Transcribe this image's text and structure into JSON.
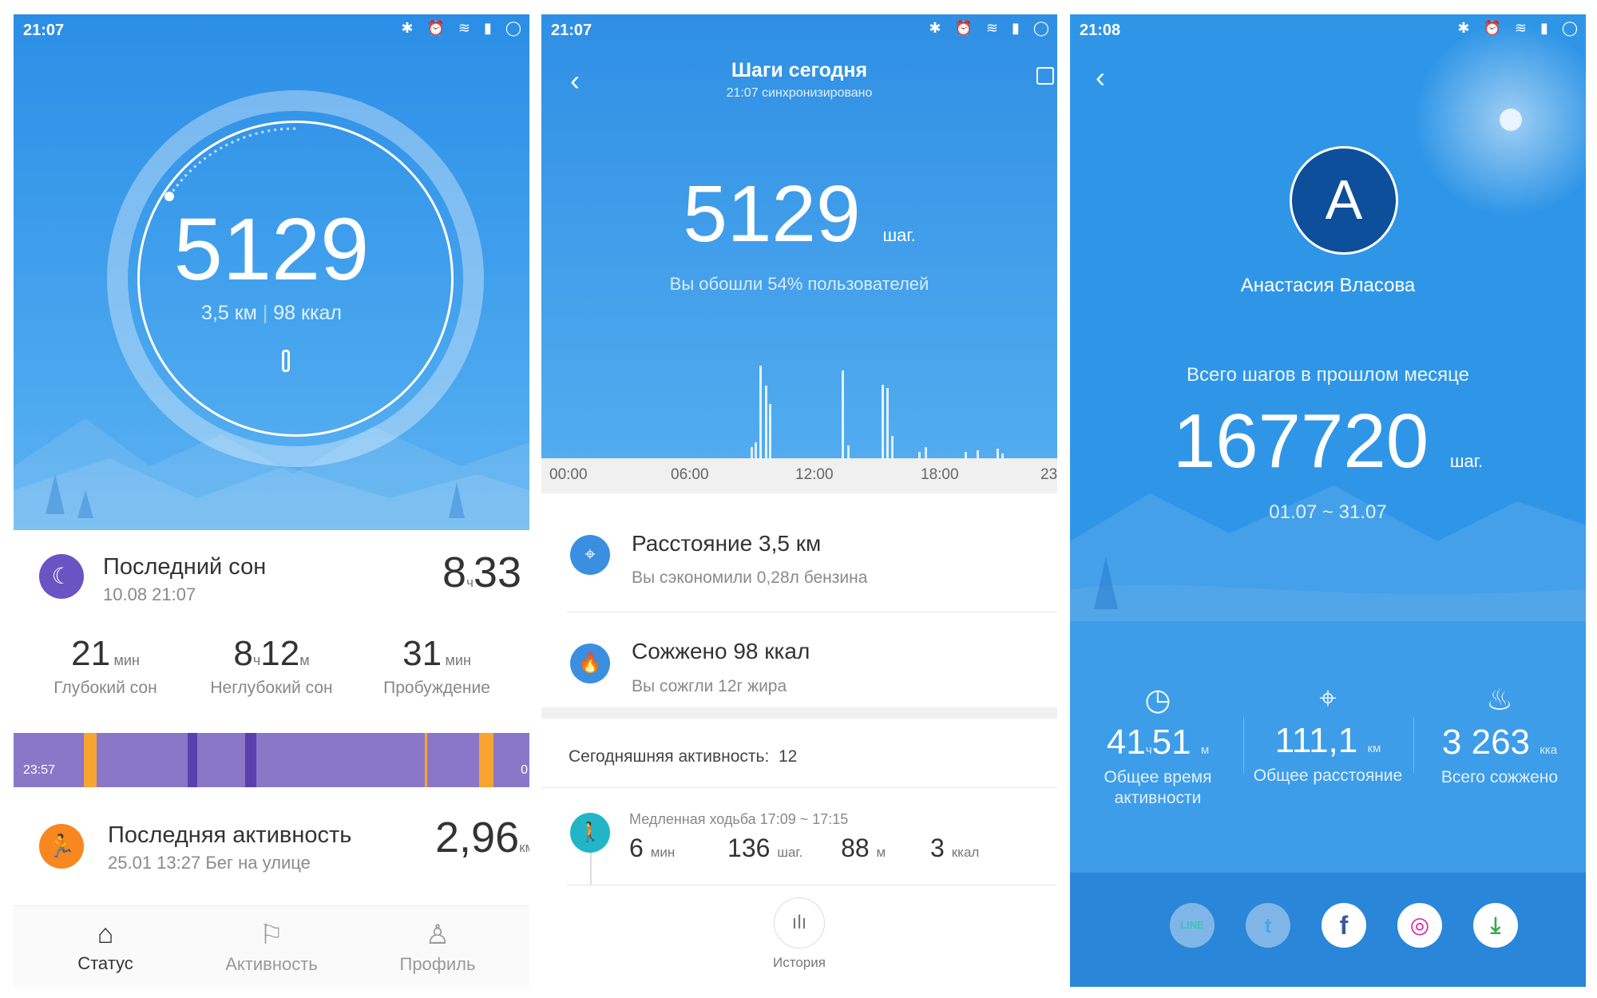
{
  "screen1": {
    "status_time": "21:07",
    "status_icons": "✱ ⏰ ≋ ▮ ◯",
    "steps": "5129",
    "distance": "3,5 км",
    "calories": "98 ккал",
    "sleep": {
      "title": "Последний сон",
      "date": "10.08 21:07",
      "hours": "8",
      "hours_unit": "ч",
      "minutes": "33",
      "deep": {
        "value": "21",
        "unit": "мин",
        "label": "Глубокий сон"
      },
      "light": {
        "hours": "8",
        "hours_unit": "ч",
        "minutes": "12",
        "minutes_unit": "м",
        "label": "Неглубокий сон"
      },
      "awake": {
        "value": "31",
        "unit": "мин",
        "label": "Пробуждение"
      },
      "bar_start": "23:57",
      "bar_end": "0"
    },
    "activity": {
      "title": "Последняя активность",
      "subtitle": "25.01 13:27 Бег на улице",
      "value": "2,96",
      "unit": "км"
    },
    "tabs": [
      {
        "label": "Статус",
        "icon": "home-icon",
        "active": true
      },
      {
        "label": "Активность",
        "icon": "flag-icon",
        "active": false
      },
      {
        "label": "Профиль",
        "icon": "user-icon",
        "active": false
      }
    ]
  },
  "screen2": {
    "status_time": "21:07",
    "status_icons": "✱ ⏰ ≋ ▮ ◯",
    "title": "Шаги сегодня",
    "subtitle": "21:07 синхронизировано",
    "steps": "5129",
    "steps_unit": "шаг.",
    "percentile": "Вы обошли 54% пользователей",
    "x_ticks": [
      "00:00",
      "06:00",
      "12:00",
      "18:00",
      "23"
    ],
    "distance": {
      "title_prefix": "Расстояние ",
      "title_value": "3,5 км",
      "subtitle": "Вы сэкономили 0,28л бензина"
    },
    "burned": {
      "title_prefix": "Сожжено ",
      "title_value": "98 ккал",
      "subtitle": "Вы сожгли 12г жира"
    },
    "today_activity_label": "Сегодняшняя активность:",
    "today_activity_count": "12",
    "walk": {
      "title": "Медленная ходьба 17:09 ~ 17:15",
      "minutes": "6",
      "minutes_unit": "мин",
      "steps": "136",
      "steps_unit": "шаг.",
      "meters": "88",
      "meters_unit": "м",
      "kcal": "3",
      "kcal_unit": "ккал"
    },
    "history_label": "История"
  },
  "screen3": {
    "status_time": "21:08",
    "status_icons": "✱ ⏰ ≋ ▮ ◯",
    "avatar_letter": "A",
    "user_name": "Анастасия Власова",
    "month_label": "Всего шагов в прошлом месяце",
    "month_steps": "167720",
    "month_unit": "шаг.",
    "date_range": "01.07 ~ 31.07",
    "active_time": {
      "hours": "41",
      "hours_unit": "ч",
      "minutes": "51",
      "minutes_unit": "м",
      "label_line1": "Общее время",
      "label_line2": "активности"
    },
    "distance": {
      "value": "111,1",
      "unit": "км",
      "label": "Общее расстояние"
    },
    "burned": {
      "value": "3 263",
      "unit": "кка",
      "label": "Всего сожжено"
    },
    "share": [
      {
        "name": "LINE",
        "label": "LINE",
        "color": "#3fc3b4"
      },
      {
        "name": "twitter",
        "label": "t",
        "color": "#45a9e8"
      },
      {
        "name": "facebook",
        "label": "f",
        "color": "#ffffff"
      },
      {
        "name": "instagram",
        "label": "◎",
        "color": "#ffffff"
      },
      {
        "name": "download",
        "label": "⤓",
        "color": "#ffffff"
      }
    ]
  }
}
